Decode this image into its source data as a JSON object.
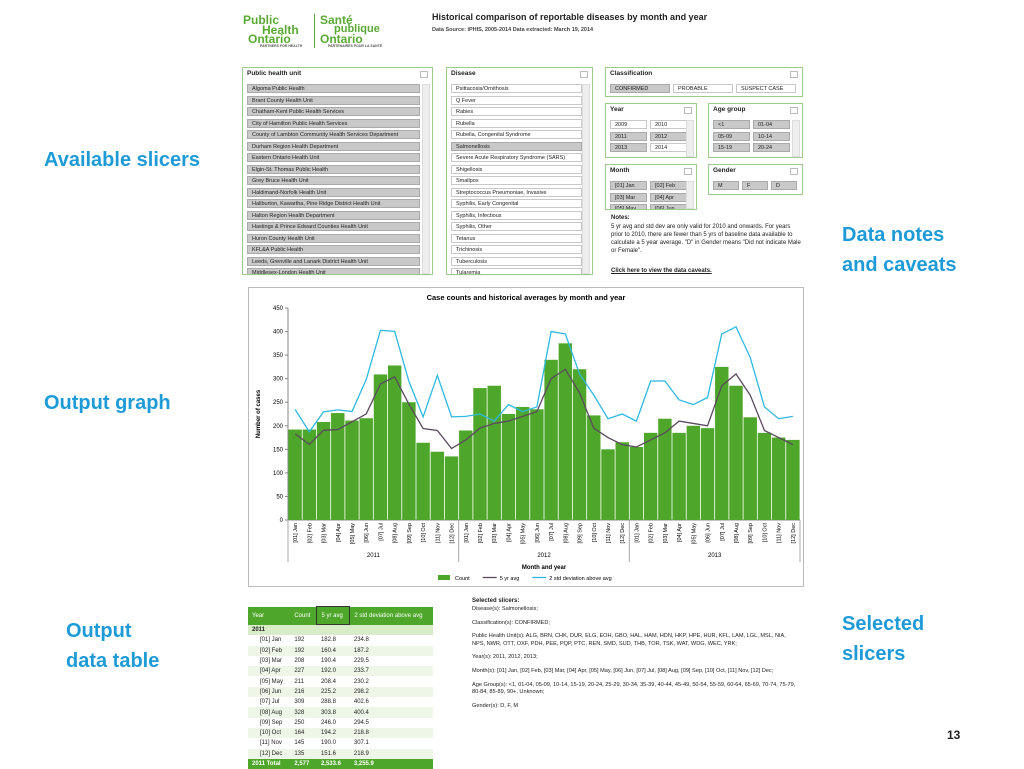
{
  "logo": {
    "en_1": "Public",
    "en_2": "Health",
    "en_3": "Ontario",
    "fr_1": "Santé",
    "fr_2": "publique",
    "fr_3": "Ontario",
    "tag_en": "PARTNERS FOR HEALTH",
    "tag_fr": "PARTENAIRES POUR LA SANTÉ"
  },
  "header": {
    "title": "Historical comparison of reportable diseases by month and year",
    "source": "Data Source: iPHIS, 2005-2014 Data extracted: March 19, 2014"
  },
  "callouts": {
    "slicers": "Available slicers",
    "notes_1": "Data notes",
    "notes_2": "and caveats",
    "graph": "Output graph",
    "table_1": "Output",
    "table_2": "data table",
    "selected_1": "Selected",
    "selected_2": "slicers",
    "page": "13"
  },
  "slicers": {
    "phu": {
      "title": "Public health unit",
      "items": [
        "Algoma Public Health",
        "Brant County Health Unit",
        "Chatham-Kent Public Health Services",
        "City of Hamilton Public Health Services",
        "County of Lambton Community Health Services Department",
        "Durham Region Health Department",
        "Eastern Ontario Health Unit",
        "Elgin-St. Thomas Public Health",
        "Grey Bruce Health Unit",
        "Haldimand-Norfolk Health Unit",
        "Haliburton, Kawartha, Pine Ridge District Health Unit",
        "Halton Region Health Department",
        "Hastings & Prince Edward Counties Health Unit",
        "Huron County Health Unit",
        "KFL&A Public Health",
        "Leeds, Grenville and Lanark District Health Unit",
        "Middlesex-London Health Unit"
      ]
    },
    "disease": {
      "title": "Disease",
      "items": [
        "Psittacosis/Ornithosis",
        "Q Fever",
        "Rabies",
        "Rubella",
        "Rubella, Congenital Syndrome",
        "Salmonellosis",
        "Severe Acute Respiratory Syndrome (SARS)",
        "Shigellosis",
        "Smallpox",
        "Streptococcus Pneumoniae, Invasive",
        "Syphilis, Early Congenital",
        "Syphilis, Infectious",
        "Syphilis, Other",
        "Tetanus",
        "Trichinosis",
        "Tuberculosis",
        "Tularemia"
      ]
    },
    "classification": {
      "title": "Classification",
      "items": [
        "CONFIRMED",
        "PROBABLE",
        "SUSPECT CASE"
      ]
    },
    "year": {
      "title": "Year",
      "items": [
        "2009",
        "2010",
        "2011",
        "2012",
        "2013",
        "2014"
      ]
    },
    "age": {
      "title": "Age group",
      "items": [
        "<1",
        "01-04",
        "05-09",
        "10-14",
        "15-19",
        "20-24"
      ]
    },
    "month": {
      "title": "Month",
      "items": [
        "[01] Jan",
        "[02] Feb",
        "[03] Mar",
        "[04] Apr",
        "[05] May",
        "[06] Jun"
      ]
    },
    "gender": {
      "title": "Gender",
      "items": [
        "M",
        "F",
        "D"
      ]
    }
  },
  "notes": {
    "title": "Notes:",
    "text": "5 yr avg and std dev are only valid for 2010 and onwards.  For years prior to 2010, there are fewer than 5 yrs of baseline data available to calculate a 5 year average. \"D\" in Gender means \"Did not indicate  Male or Female\".",
    "link": "Click here to view the data caveats."
  },
  "chart_data": {
    "type": "bar_line",
    "title": "Case counts and historical averages by month and year",
    "y_label": "Number of cases",
    "x_label": "Month and year",
    "categories": [
      "[01] Jan",
      "[02] Feb",
      "[03] Mar",
      "[04] Apr",
      "[05] May",
      "[06] Jun",
      "[07] Jul",
      "[08] Aug",
      "[09] Sep",
      "[10] Oct",
      "[11] Nov",
      "[12] Dec",
      "[01] Jan",
      "[02] Feb",
      "[03] Mar",
      "[04] Apr",
      "[05] May",
      "[06] Jun",
      "[07] Jul",
      "[08] Aug",
      "[09] Sep",
      "[10] Oct",
      "[11] Nov",
      "[12] Dec",
      "[01] Jan",
      "[02] Feb",
      "[03] Mar",
      "[04] Apr",
      "[05] May",
      "[06] Jun",
      "[07] Jul",
      "[08] Aug",
      "[09] Sep",
      "[10] Oct",
      "[11] Nov",
      "[12] Dec"
    ],
    "year_labels": [
      "2011",
      "2012",
      "2013"
    ],
    "ylim": [
      0,
      450
    ],
    "yticks": [
      0,
      50,
      100,
      150,
      200,
      250,
      300,
      350,
      400,
      450
    ],
    "series": [
      {
        "name": "Count",
        "type": "bar",
        "color": "#4ea72a",
        "values": [
          192,
          192,
          208,
          227,
          211,
          216,
          309,
          328,
          250,
          164,
          145,
          135,
          190,
          280,
          285,
          225,
          240,
          235,
          340,
          375,
          320,
          222,
          150,
          165,
          155,
          185,
          215,
          185,
          200,
          195,
          325,
          285,
          218,
          185,
          175,
          170
        ]
      },
      {
        "name": "5 yr avg",
        "type": "line",
        "color": "#5a4a5e",
        "values": [
          182.8,
          160.4,
          190.4,
          192.0,
          208.4,
          225.2,
          288.8,
          303.8,
          246.0,
          194.2,
          190.0,
          151.6,
          170,
          195,
          205,
          210,
          220,
          230,
          300,
          320,
          270,
          195,
          175,
          160,
          155,
          170,
          185,
          210,
          205,
          200,
          285,
          310,
          265,
          190,
          175,
          160
        ]
      },
      {
        "name": "2 std deviation above avg",
        "type": "line",
        "color": "#2fb8e0",
        "values": [
          234.8,
          187.2,
          229.5,
          233.7,
          230.2,
          298.2,
          402.6,
          400.4,
          294.5,
          218.8,
          307.1,
          218.9,
          220,
          225,
          210,
          245,
          230,
          240,
          400,
          395,
          310,
          265,
          215,
          225,
          210,
          295,
          295,
          255,
          245,
          260,
          395,
          410,
          345,
          240,
          215,
          220
        ]
      }
    ]
  },
  "table": {
    "header": [
      "Year",
      "Count",
      "5 yr avg",
      "2 std deviation above avg"
    ],
    "group": "2011",
    "rows": [
      [
        "[01] Jan",
        "192",
        "182.8",
        "234.8"
      ],
      [
        "[02] Feb",
        "192",
        "160.4",
        "187.2"
      ],
      [
        "[03] Mar",
        "208",
        "190.4",
        "229.5"
      ],
      [
        "[04] Apr",
        "227",
        "192.0",
        "233.7"
      ],
      [
        "[05] May",
        "211",
        "208.4",
        "230.2"
      ],
      [
        "[06] Jun",
        "216",
        "225.2",
        "298.2"
      ],
      [
        "[07] Jul",
        "309",
        "288.8",
        "402.6"
      ],
      [
        "[08] Aug",
        "328",
        "303.8",
        "400.4"
      ],
      [
        "[09] Sep",
        "250",
        "246.0",
        "294.5"
      ],
      [
        "[10] Oct",
        "164",
        "194.2",
        "218.8"
      ],
      [
        "[11] Nov",
        "145",
        "190.0",
        "307.1"
      ],
      [
        "[12] Dec",
        "135",
        "151.6",
        "218.9"
      ]
    ],
    "total": [
      "2011 Total",
      "2,577",
      "2,533.6",
      "3,255.9"
    ]
  },
  "selected": {
    "title": "Selected slicers:",
    "lines": [
      "Disease(s): Salmonellosis;",
      "Classification(s): CONFIRMED;",
      "Public Health Unit(s): ALG, BRN, CHK, DUR, ELG, EOH, GBO, HAL, HAM, HDN, HKP, HPE, HUR, KFL, LAM, LGL, MSL, NIA, NPS, NWR, OTT, OXF, PDH, PEE, PQP, PTC, REN, SMD, SUD, THB, TOR, TSK, WAT, WDG, WEC, YRK;",
      "Year(s): 2011, 2012, 2013;",
      "Month(s): [01] Jan, [02] Feb, [03] Mar, [04] Apr, [05] May, [06] Jun, [07] Jul, [08] Aug, [09] Sep, [10] Oct, [11] Nov, [12] Dec;",
      "Age Group(s): <1, 01-04, 05-09, 10-14, 15-19, 20-24, 25-29, 30-34, 35-39, 40-44, 45-49, 50-54, 55-59, 60-64, 65-69, 70-74, 75-79, 80-84, 85-89, 90+, Unknown;",
      "Gender(s): D, F, M"
    ]
  }
}
